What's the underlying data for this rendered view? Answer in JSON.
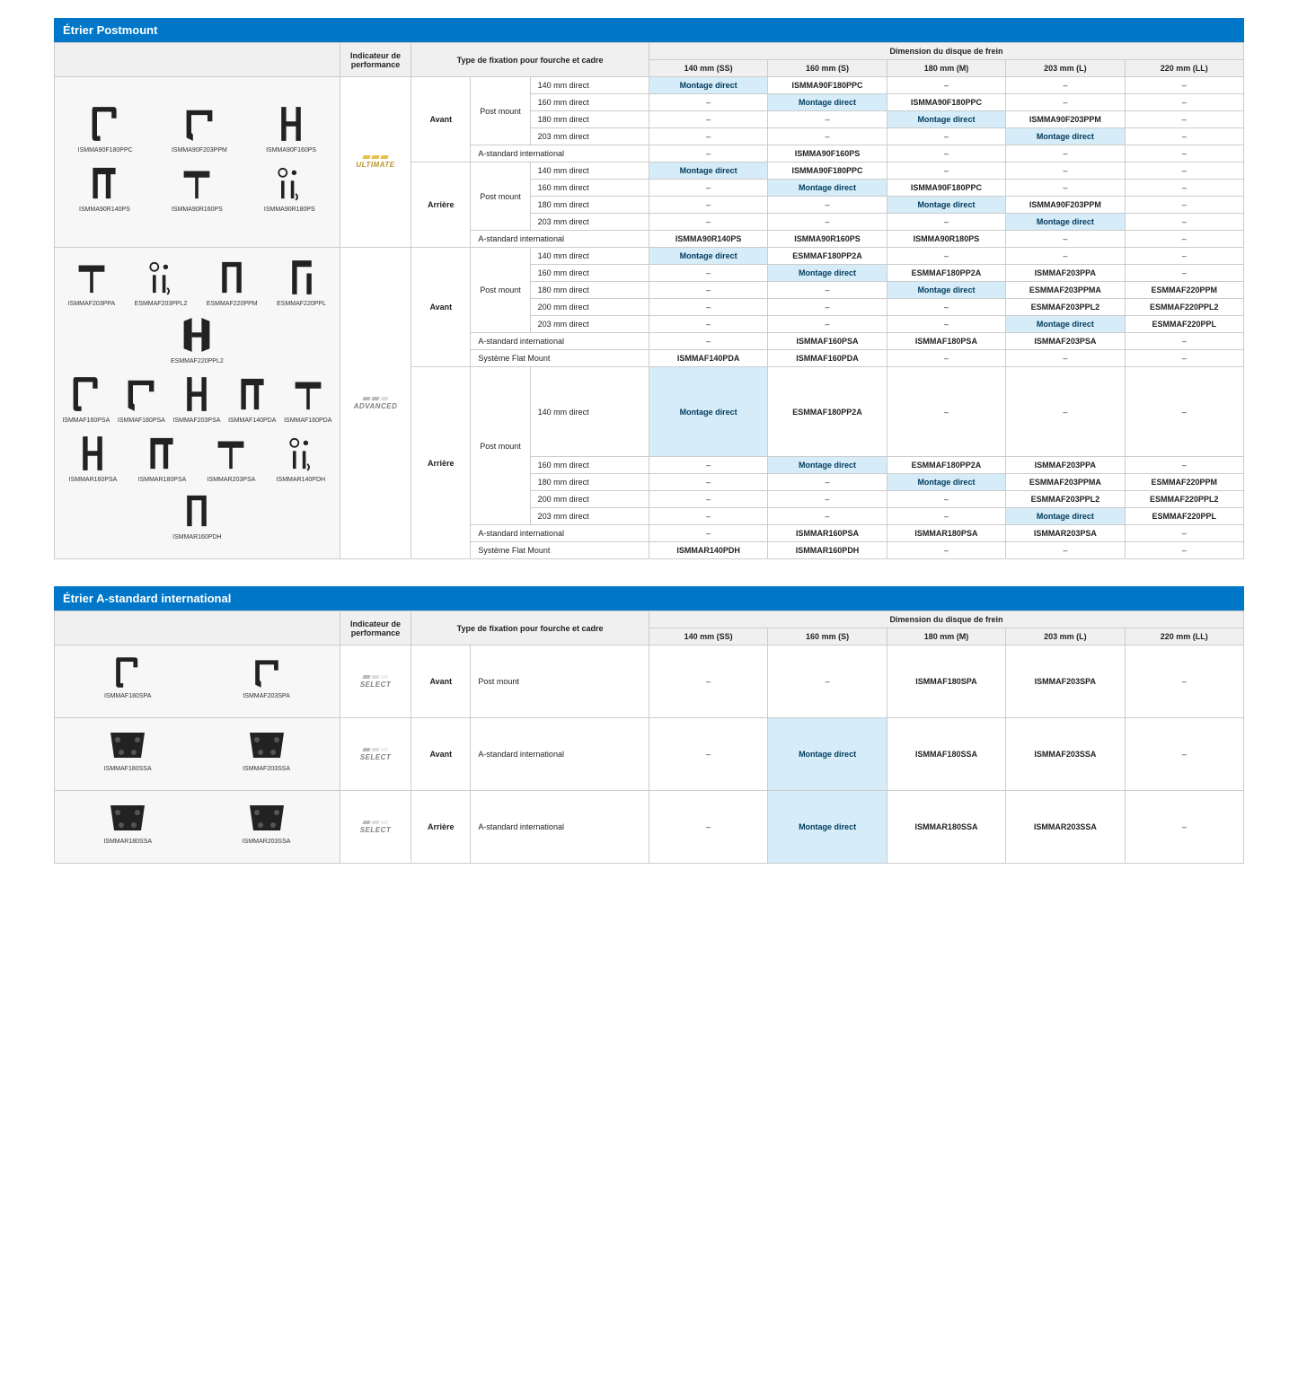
{
  "section1": {
    "title": "Étrier Postmount",
    "headers": {
      "perf": "Indicateur de performance",
      "fix": "Type de fixation pour fourche et cadre",
      "dim": "Dimension du disque de frein",
      "dims": [
        "140 mm (SS)",
        "160 mm (S)",
        "180 mm (M)",
        "203 mm (L)",
        "220 mm (LL)"
      ]
    },
    "tiers": {
      "ultimate": "ULTIMATE",
      "advanced": "ADVANCED"
    },
    "positions": {
      "front": "Avant",
      "rear": "Arrière"
    },
    "mounts": {
      "post": "Post mount",
      "astd": "A-standard international",
      "flat": "Système Flat Mount"
    },
    "fixes": {
      "d140": "140 mm direct",
      "d160": "160 mm direct",
      "d180": "180 mm direct",
      "d200": "200 mm direct",
      "d203": "203 mm direct"
    },
    "md": "Montage direct",
    "dash": "–",
    "illus_ultimate_r1": [
      "ISMMA90F180PPC",
      "ISMMA90F203PPM",
      "ISMMA90F160PS"
    ],
    "illus_ultimate_r2": [
      "ISMMA90R140PS",
      "ISMMA90R160PS",
      "ISMMA90R180PS"
    ],
    "illus_advanced_r1": [
      "ISMMAF203PPA",
      "ESMMAF203PPL2",
      "ESMMAF220PPM",
      "ESMMAF220PPL",
      "ESMMAF220PPL2"
    ],
    "illus_advanced_r2": [
      "ISMMAF160PSA",
      "ISMMAF180PSA",
      "ISMMAF203PSA",
      "ISMMAF140PDA",
      "ISMMAF160PDA"
    ],
    "illus_advanced_r3": [
      "ISMMAR160PSA",
      "ISMMAR180PSA",
      "ISMMAR203PSA",
      "ISMMAR140PDH",
      "ISMMAR160PDH"
    ],
    "ultimate_front_rows": [
      {
        "fix": "d140",
        "c": [
          {
            "t": "md",
            "h": 1
          },
          {
            "t": "ISMMA90F180PPC"
          },
          {
            "t": "dash"
          },
          {
            "t": "dash"
          },
          {
            "t": "dash"
          }
        ]
      },
      {
        "fix": "d160",
        "c": [
          {
            "t": "dash"
          },
          {
            "t": "md",
            "h": 1
          },
          {
            "t": "ISMMA90F180PPC"
          },
          {
            "t": "dash"
          },
          {
            "t": "dash"
          }
        ]
      },
      {
        "fix": "d180",
        "c": [
          {
            "t": "dash"
          },
          {
            "t": "dash"
          },
          {
            "t": "md",
            "h": 1
          },
          {
            "t": "ISMMA90F203PPM"
          },
          {
            "t": "dash"
          }
        ]
      },
      {
        "fix": "d203",
        "c": [
          {
            "t": "dash"
          },
          {
            "t": "dash"
          },
          {
            "t": "dash"
          },
          {
            "t": "md",
            "h": 1
          },
          {
            "t": "dash"
          }
        ]
      }
    ],
    "ultimate_front_astd": [
      {
        "t": "dash"
      },
      {
        "t": "ISMMA90F160PS"
      },
      {
        "t": "dash"
      },
      {
        "t": "dash"
      },
      {
        "t": "dash"
      }
    ],
    "ultimate_rear_rows": [
      {
        "fix": "d140",
        "c": [
          {
            "t": "md",
            "h": 1
          },
          {
            "t": "ISMMA90F180PPC"
          },
          {
            "t": "dash"
          },
          {
            "t": "dash"
          },
          {
            "t": "dash"
          }
        ]
      },
      {
        "fix": "d160",
        "c": [
          {
            "t": "dash"
          },
          {
            "t": "md",
            "h": 1
          },
          {
            "t": "ISMMA90F180PPC"
          },
          {
            "t": "dash"
          },
          {
            "t": "dash"
          }
        ]
      },
      {
        "fix": "d180",
        "c": [
          {
            "t": "dash"
          },
          {
            "t": "dash"
          },
          {
            "t": "md",
            "h": 1
          },
          {
            "t": "ISMMA90F203PPM"
          },
          {
            "t": "dash"
          }
        ]
      },
      {
        "fix": "d203",
        "c": [
          {
            "t": "dash"
          },
          {
            "t": "dash"
          },
          {
            "t": "dash"
          },
          {
            "t": "md",
            "h": 1
          },
          {
            "t": "dash"
          }
        ]
      }
    ],
    "ultimate_rear_astd": [
      {
        "t": "ISMMA90R140PS"
      },
      {
        "t": "ISMMA90R160PS"
      },
      {
        "t": "ISMMA90R180PS"
      },
      {
        "t": "dash"
      },
      {
        "t": "dash"
      }
    ],
    "advanced_front_rows": [
      {
        "fix": "d140",
        "c": [
          {
            "t": "md",
            "h": 1
          },
          {
            "t": "ESMMAF180PP2A"
          },
          {
            "t": "dash"
          },
          {
            "t": "dash"
          },
          {
            "t": "dash"
          }
        ]
      },
      {
        "fix": "d160",
        "c": [
          {
            "t": "dash"
          },
          {
            "t": "md",
            "h": 1
          },
          {
            "t": "ESMMAF180PP2A"
          },
          {
            "t": "ISMMAF203PPA"
          },
          {
            "t": "dash"
          }
        ]
      },
      {
        "fix": "d180",
        "c": [
          {
            "t": "dash"
          },
          {
            "t": "dash"
          },
          {
            "t": "md",
            "h": 1
          },
          {
            "t": "ESMMAF203PPMA"
          },
          {
            "t": "ESMMAF220PPM"
          }
        ]
      },
      {
        "fix": "d200",
        "c": [
          {
            "t": "dash"
          },
          {
            "t": "dash"
          },
          {
            "t": "dash"
          },
          {
            "t": "ESMMAF203PPL2"
          },
          {
            "t": "ESMMAF220PPL2"
          }
        ]
      },
      {
        "fix": "d203",
        "c": [
          {
            "t": "dash"
          },
          {
            "t": "dash"
          },
          {
            "t": "dash"
          },
          {
            "t": "md",
            "h": 1
          },
          {
            "t": "ESMMAF220PPL"
          }
        ]
      }
    ],
    "advanced_front_astd": [
      {
        "t": "dash"
      },
      {
        "t": "ISMMAF160PSA"
      },
      {
        "t": "ISMMAF180PSA"
      },
      {
        "t": "ISMMAF203PSA"
      },
      {
        "t": "dash"
      }
    ],
    "advanced_front_flat": [
      {
        "t": "ISMMAF140PDA"
      },
      {
        "t": "ISMMAF160PDA"
      },
      {
        "t": "dash"
      },
      {
        "t": "dash"
      },
      {
        "t": "dash"
      }
    ],
    "advanced_rear_rows": [
      {
        "fix": "d140",
        "c": [
          {
            "t": "md",
            "h": 1
          },
          {
            "t": "ESMMAF180PP2A"
          },
          {
            "t": "dash"
          },
          {
            "t": "dash"
          },
          {
            "t": "dash"
          }
        ]
      },
      {
        "fix": "d160",
        "c": [
          {
            "t": "dash"
          },
          {
            "t": "md",
            "h": 1
          },
          {
            "t": "ESMMAF180PP2A"
          },
          {
            "t": "ISMMAF203PPA"
          },
          {
            "t": "dash"
          }
        ]
      },
      {
        "fix": "d180",
        "c": [
          {
            "t": "dash"
          },
          {
            "t": "dash"
          },
          {
            "t": "md",
            "h": 1
          },
          {
            "t": "ESMMAF203PPMA"
          },
          {
            "t": "ESMMAF220PPM"
          }
        ]
      },
      {
        "fix": "d200",
        "c": [
          {
            "t": "dash"
          },
          {
            "t": "dash"
          },
          {
            "t": "dash"
          },
          {
            "t": "ESMMAF203PPL2"
          },
          {
            "t": "ESMMAF220PPL2"
          }
        ]
      },
      {
        "fix": "d203",
        "c": [
          {
            "t": "dash"
          },
          {
            "t": "dash"
          },
          {
            "t": "dash"
          },
          {
            "t": "md",
            "h": 1
          },
          {
            "t": "ESMMAF220PPL"
          }
        ]
      }
    ],
    "advanced_rear_astd": [
      {
        "t": "dash"
      },
      {
        "t": "ISMMAR160PSA"
      },
      {
        "t": "ISMMAR180PSA"
      },
      {
        "t": "ISMMAR203PSA"
      },
      {
        "t": "dash"
      }
    ],
    "advanced_rear_flat": [
      {
        "t": "ISMMAR140PDH"
      },
      {
        "t": "ISMMAR160PDH"
      },
      {
        "t": "dash"
      },
      {
        "t": "dash"
      },
      {
        "t": "dash"
      }
    ]
  },
  "section2": {
    "title": "Étrier A-standard international",
    "headers": {
      "perf": "Indicateur de performance",
      "fix": "Type de fixation pour fourche et cadre",
      "dim": "Dimension du disque de frein",
      "dims": [
        "140 mm (SS)",
        "160 mm (S)",
        "180 mm (M)",
        "203 mm (L)",
        "220 mm (LL)"
      ]
    },
    "tier": "SELECT",
    "rows": [
      {
        "illus": [
          "ISMMAF180SPA",
          "ISMMAF203SPA"
        ],
        "pos": "Avant",
        "fix": "Post mount",
        "c": [
          {
            "t": "–"
          },
          {
            "t": "–"
          },
          {
            "t": "ISMMAF180SPA"
          },
          {
            "t": "ISMMAF203SPA"
          },
          {
            "t": "–"
          }
        ]
      },
      {
        "illus": [
          "ISMMAF180SSA",
          "ISMMAF203SSA"
        ],
        "pos": "Avant",
        "fix": "A-standard international",
        "c": [
          {
            "t": "–"
          },
          {
            "t": "Montage direct",
            "h": 1
          },
          {
            "t": "ISMMAF180SSA"
          },
          {
            "t": "ISMMAF203SSA"
          },
          {
            "t": "–"
          }
        ]
      },
      {
        "illus": [
          "ISMMAR180SSA",
          "ISMMAR203SSA"
        ],
        "pos": "Arrière",
        "fix": "A-standard international",
        "c": [
          {
            "t": "–"
          },
          {
            "t": "Montage direct",
            "h": 1
          },
          {
            "t": "ISMMAR180SSA"
          },
          {
            "t": "ISMMAR203SSA"
          },
          {
            "t": "–"
          }
        ]
      }
    ]
  },
  "colors": {
    "header_bg": "#0077c8",
    "highlight_bg": "#d6ecf8",
    "border": "#cccccc",
    "th_bg": "#f0f0f0",
    "ultimate": "#b8962e",
    "advanced": "#808080"
  }
}
